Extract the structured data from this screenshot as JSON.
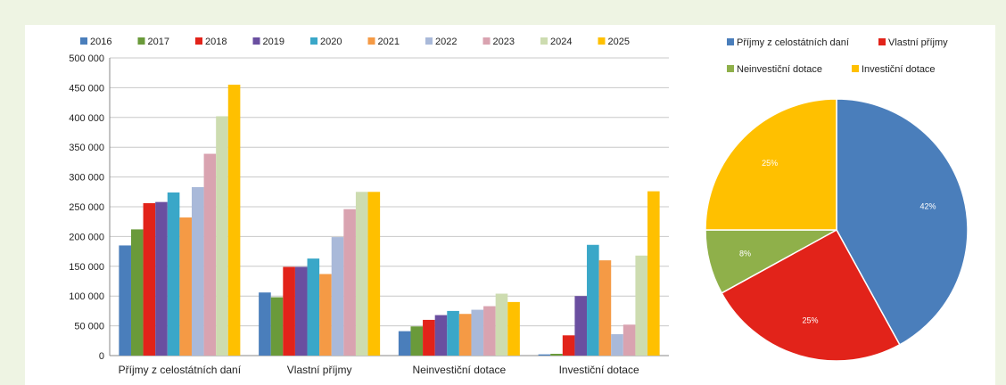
{
  "chart_data": [
    {
      "type": "bar",
      "categories": [
        "Příjmy z celostátních daní",
        "Vlastní příjmy",
        "Neinvestiční dotace",
        "Investiční dotace"
      ],
      "series": [
        {
          "name": "2016",
          "color": "#4a7ebb",
          "values": [
            185000,
            106000,
            41000,
            2000
          ]
        },
        {
          "name": "2017",
          "color": "#6a9a3a",
          "values": [
            212000,
            98000,
            49000,
            3000
          ]
        },
        {
          "name": "2018",
          "color": "#e2231a",
          "values": [
            256000,
            149000,
            60000,
            34000
          ]
        },
        {
          "name": "2019",
          "color": "#6a4fa0",
          "values": [
            258000,
            149000,
            68000,
            100000
          ]
        },
        {
          "name": "2020",
          "color": "#3aa7c8",
          "values": [
            274000,
            163000,
            75000,
            186000
          ]
        },
        {
          "name": "2021",
          "color": "#f59a45",
          "values": [
            232000,
            137000,
            70000,
            160000
          ]
        },
        {
          "name": "2022",
          "color": "#a9b9d9",
          "values": [
            283000,
            199000,
            77000,
            36000
          ]
        },
        {
          "name": "2023",
          "color": "#d9a3b0",
          "values": [
            339000,
            246000,
            83000,
            52000
          ]
        },
        {
          "name": "2024",
          "color": "#cddcb0",
          "values": [
            402000,
            275000,
            104000,
            168000
          ]
        },
        {
          "name": "2025",
          "color": "#ffc000",
          "values": [
            455000,
            275000,
            90000,
            276000
          ]
        }
      ],
      "yticks": [
        "0",
        "50 000",
        "100 000",
        "150 000",
        "200 000",
        "250 000",
        "300 000",
        "350 000",
        "400 000",
        "450 000",
        "500 000"
      ],
      "ylim": [
        0,
        500000
      ],
      "grid": true,
      "legend": "top"
    },
    {
      "type": "pie",
      "slices": [
        {
          "label": "Příjmy z celostátních daní",
          "value": 42,
          "pct_label": "42%",
          "color": "#4a7ebb"
        },
        {
          "label": "Vlastní příjmy",
          "value": 25,
          "pct_label": "25%",
          "color": "#e2231a"
        },
        {
          "label": "Neinvestiční dotace",
          "value": 8,
          "pct_label": "8%",
          "color": "#8fb04a"
        },
        {
          "label": "Investiční dotace",
          "value": 25,
          "pct_label": "25%",
          "color": "#ffc000"
        }
      ],
      "legend": "top"
    }
  ]
}
